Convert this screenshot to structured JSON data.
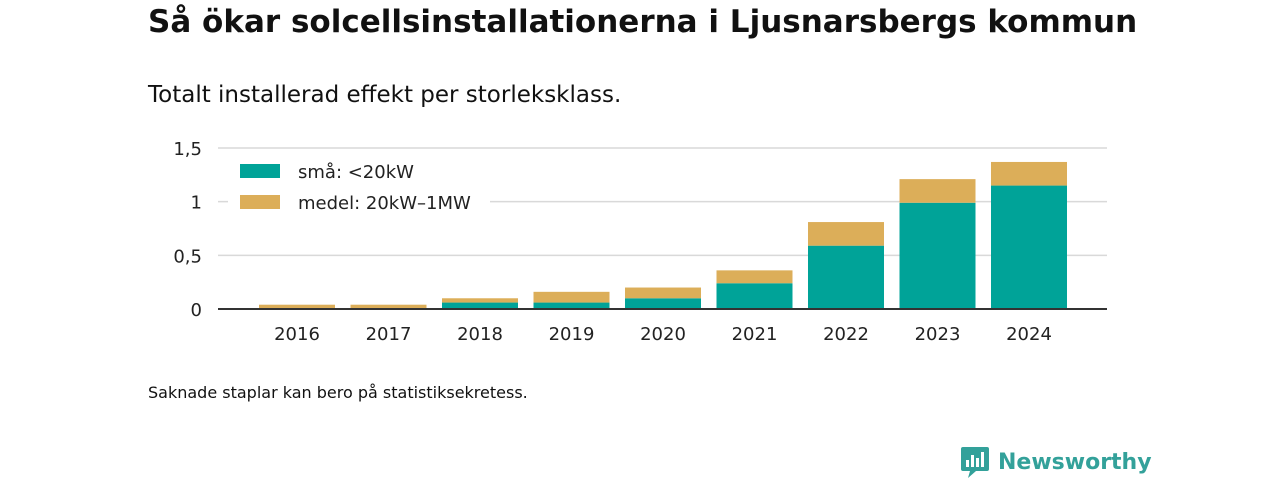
{
  "title": "Så ökar solcellsinstallationerna i Ljusnarsbergs kommun",
  "subtitle": "Totalt installerad effekt per storleksklass.",
  "note": "Saknade staplar kan bero på statistiksekretess.",
  "brand": {
    "name": "Newsworthy",
    "icon": "newsworthy-logo-icon",
    "color": "#33a19a"
  },
  "chart_data": {
    "type": "bar",
    "stacked": true,
    "categories": [
      "2016",
      "2017",
      "2018",
      "2019",
      "2020",
      "2021",
      "2022",
      "2023",
      "2024"
    ],
    "series": [
      {
        "name": "små: <20kW",
        "color": "#00a398",
        "values": [
          0.0,
          0.0,
          0.06,
          0.06,
          0.1,
          0.24,
          0.59,
          0.99,
          1.15
        ]
      },
      {
        "name": "medel: 20kW–1MW",
        "color": "#dcae59",
        "values": [
          0.04,
          0.04,
          0.04,
          0.1,
          0.1,
          0.12,
          0.22,
          0.22,
          0.22
        ]
      }
    ],
    "ylim": [
      0,
      1.5
    ],
    "yticks": [
      0,
      0.5,
      1,
      1.5
    ],
    "ytick_labels": [
      "0",
      "0,5",
      "1",
      "1,5"
    ],
    "grid": true,
    "legend_position": "top-left"
  }
}
